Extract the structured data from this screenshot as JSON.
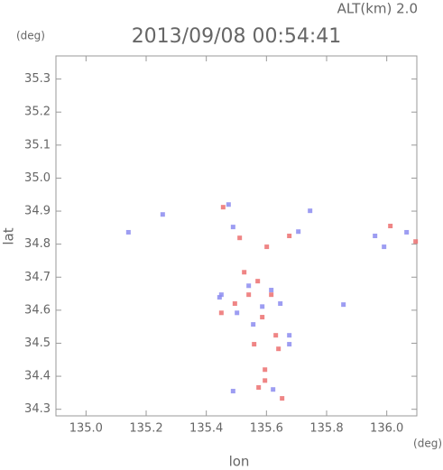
{
  "chart_data": {
    "type": "scatter",
    "title": "2013/09/08 00:54:41",
    "subtitle": "ALT(km) 2.0",
    "x_label": "lon",
    "x_unit": "(deg)",
    "y_label": "lat",
    "y_unit": "(deg)",
    "xlim": [
      134.9,
      136.1
    ],
    "xticks": [
      {
        "value": 135,
        "label": "135.0"
      },
      135.2,
      135.4,
      135.6,
      135.8,
      {
        "value": 136,
        "label": "136.0"
      }
    ],
    "ylim": [
      34.28,
      35.37
    ],
    "yticks": [
      34.3,
      34.4,
      34.5,
      34.6,
      34.7,
      34.8,
      34.9,
      {
        "value": 35,
        "label": "35.0"
      },
      35.1,
      35.2,
      35.3
    ],
    "series": [
      {
        "color": "#ec7070",
        "x": [
          135.456,
          135.601,
          135.676,
          135.526,
          135.571,
          135.541,
          135.586,
          135.45,
          135.495,
          135.559,
          135.64,
          135.595,
          135.595,
          135.574,
          135.652,
          136.012,
          136.096,
          135.616,
          135.511,
          135.631
        ],
        "y": [
          34.912,
          34.792,
          34.825,
          34.715,
          34.688,
          34.647,
          34.579,
          34.592,
          34.62,
          34.497,
          34.483,
          34.42,
          34.387,
          34.366,
          34.333,
          34.855,
          34.808,
          34.647,
          34.819,
          34.524
        ]
      },
      {
        "color": "#8c8cf0",
        "x": [
          135.474,
          135.489,
          135.745,
          135.255,
          135.141,
          135.961,
          136.066,
          135.856,
          135.45,
          135.541,
          135.616,
          135.646,
          135.502,
          135.586,
          135.556,
          135.676,
          135.676,
          135.489,
          135.622,
          135.444,
          135.991,
          135.706
        ],
        "y": [
          34.92,
          34.852,
          34.901,
          34.89,
          34.836,
          34.825,
          34.836,
          34.617,
          34.647,
          34.674,
          34.661,
          34.62,
          34.592,
          34.611,
          34.557,
          34.497,
          34.524,
          34.355,
          34.36,
          34.639,
          34.792,
          34.838
        ]
      }
    ]
  }
}
